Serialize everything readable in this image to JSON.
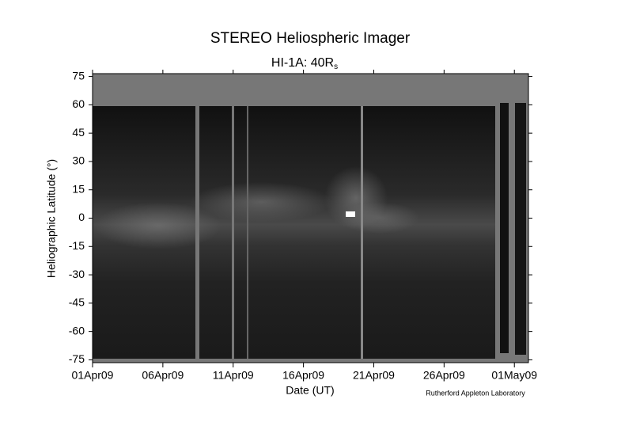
{
  "chart_data": {
    "type": "image",
    "title": "STEREO Heliospheric Imager",
    "subtitle": "HI-1A: 40R",
    "subtitle_subscript": "s",
    "x_label": "Date (UT)",
    "y_label": "Heliographic Latitude (°)",
    "credit": "Rutherford Appleton Laboratory",
    "xlim": [
      "2009-04-01",
      "2009-05-02"
    ],
    "xticks": [
      {
        "value": "2009-04-01",
        "label": "01Apr09"
      },
      {
        "value": "2009-04-06",
        "label": "06Apr09"
      },
      {
        "value": "2009-04-11",
        "label": "11Apr09"
      },
      {
        "value": "2009-04-16",
        "label": "16Apr09"
      },
      {
        "value": "2009-04-21",
        "label": "21Apr09"
      },
      {
        "value": "2009-04-26",
        "label": "26Apr09"
      },
      {
        "value": "2009-05-01",
        "label": "01May09"
      }
    ],
    "ylim": [
      -76.5,
      76.5
    ],
    "yticks": [
      -75,
      -60,
      -45,
      -30,
      -15,
      0,
      15,
      30,
      45,
      60,
      75
    ]
  }
}
